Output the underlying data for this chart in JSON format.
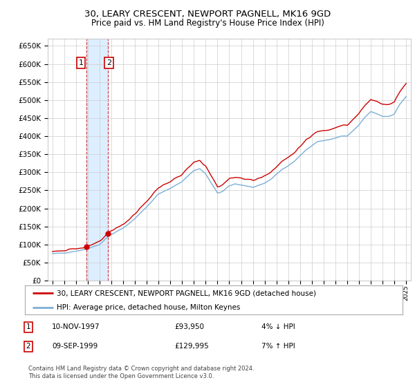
{
  "title": "30, LEARY CRESCENT, NEWPORT PAGNELL, MK16 9GD",
  "subtitle": "Price paid vs. HM Land Registry's House Price Index (HPI)",
  "legend_line1": "30, LEARY CRESCENT, NEWPORT PAGNELL, MK16 9GD (detached house)",
  "legend_line2": "HPI: Average price, detached house, Milton Keynes",
  "footnote": "Contains HM Land Registry data © Crown copyright and database right 2024.\nThis data is licensed under the Open Government Licence v3.0.",
  "sale1_label": "1",
  "sale1_date": "10-NOV-1997",
  "sale1_price": "£93,950",
  "sale1_hpi": "4% ↓ HPI",
  "sale1_x": 1997.86,
  "sale1_y": 93950,
  "sale2_label": "2",
  "sale2_date": "09-SEP-1999",
  "sale2_price": "£129,995",
  "sale2_hpi": "7% ↑ HPI",
  "sale2_x": 1999.69,
  "sale2_y": 129995,
  "xlim_left": 1994.6,
  "xlim_right": 2025.4,
  "ylim_bottom": 0,
  "ylim_top": 670000,
  "yticks": [
    0,
    50000,
    100000,
    150000,
    200000,
    250000,
    300000,
    350000,
    400000,
    450000,
    500000,
    550000,
    600000,
    650000
  ],
  "background_color": "#ffffff",
  "grid_color": "#cccccc",
  "hpi_line_color": "#7bafd4",
  "price_line_color": "#cc0000",
  "sale_dot_color": "#cc0000",
  "vline_color": "#cc0000",
  "vband_color": "#ddeeff",
  "annotation_box_color": "#ffffff",
  "annotation_box_edge": "#cc0000"
}
